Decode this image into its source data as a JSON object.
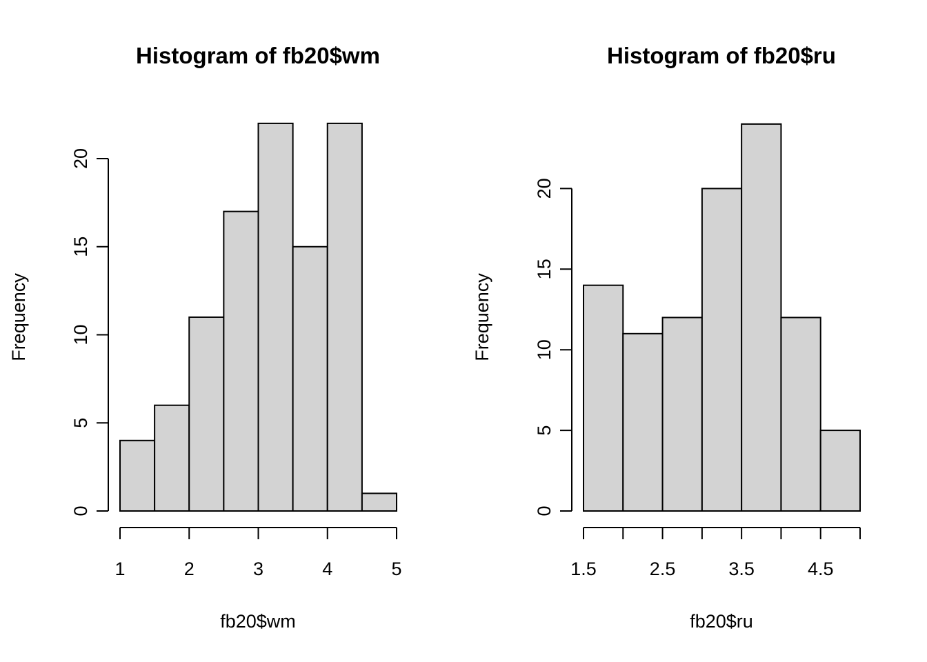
{
  "colors": {
    "bar_fill": "#d3d3d3",
    "bar_stroke": "#000000",
    "axis": "#000000",
    "background": "#ffffff"
  },
  "chart_data": [
    {
      "type": "bar",
      "title": "Histogram of fb20$wm",
      "xlabel": "fb20$wm",
      "ylabel": "Frequency",
      "bins": [
        {
          "from": 1.0,
          "to": 1.5,
          "count": 4
        },
        {
          "from": 1.5,
          "to": 2.0,
          "count": 6
        },
        {
          "from": 2.0,
          "to": 2.5,
          "count": 11
        },
        {
          "from": 2.5,
          "to": 3.0,
          "count": 17
        },
        {
          "from": 3.0,
          "to": 3.5,
          "count": 22
        },
        {
          "from": 3.5,
          "to": 4.0,
          "count": 15
        },
        {
          "from": 4.0,
          "to": 4.5,
          "count": 22
        },
        {
          "from": 4.5,
          "to": 5.0,
          "count": 1
        }
      ],
      "xlim": [
        1,
        5
      ],
      "ylim": [
        0,
        22
      ],
      "x_ticks": [
        1,
        2,
        3,
        4,
        5
      ],
      "x_tick_labels": [
        "1",
        "2",
        "3",
        "4",
        "5"
      ],
      "y_ticks": [
        0,
        5,
        10,
        15,
        20
      ],
      "y_tick_labels": [
        "0",
        "5",
        "10",
        "15",
        "20"
      ],
      "grid": false,
      "legend": "none"
    },
    {
      "type": "bar",
      "title": "Histogram of fb20$ru",
      "xlabel": "fb20$ru",
      "ylabel": "Frequency",
      "bins": [
        {
          "from": 1.5,
          "to": 2.0,
          "count": 14
        },
        {
          "from": 2.0,
          "to": 2.5,
          "count": 11
        },
        {
          "from": 2.5,
          "to": 3.0,
          "count": 12
        },
        {
          "from": 3.0,
          "to": 3.5,
          "count": 20
        },
        {
          "from": 3.5,
          "to": 4.0,
          "count": 24
        },
        {
          "from": 4.0,
          "to": 4.5,
          "count": 12
        },
        {
          "from": 4.5,
          "to": 5.0,
          "count": 5
        }
      ],
      "xlim": [
        1.5,
        5
      ],
      "ylim": [
        0,
        24
      ],
      "x_ticks": [
        1.5,
        2.0,
        2.5,
        3.0,
        3.5,
        4.0,
        4.5,
        5.0
      ],
      "x_tick_labels": [
        "1.5",
        "",
        "2.5",
        "",
        "3.5",
        "",
        "4.5",
        ""
      ],
      "y_ticks": [
        0,
        5,
        10,
        15,
        20
      ],
      "y_tick_labels": [
        "0",
        "5",
        "10",
        "15",
        "20"
      ],
      "grid": false,
      "legend": "none"
    }
  ]
}
